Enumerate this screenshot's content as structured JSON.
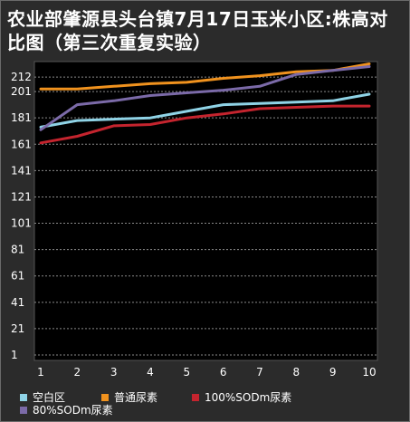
{
  "chart_data": {
    "type": "line",
    "title": "农业部肇源县头台镇7月17日玉米小区:株高对比图（第三次重复实验）",
    "x": [
      1,
      2,
      3,
      4,
      5,
      6,
      7,
      8,
      9,
      10
    ],
    "ylim": [
      1,
      221
    ],
    "yticks": [
      1,
      21,
      41,
      61,
      81,
      101,
      121,
      141,
      161,
      181,
      201,
      212
    ],
    "grid": true,
    "legend_position": "bottom",
    "series": [
      {
        "name": "空白区",
        "color": "#8fd3e6",
        "values": [
          174,
          179,
          180,
          181,
          186,
          191,
          192,
          193,
          194,
          199
        ]
      },
      {
        "name": "普通尿素",
        "color": "#f0921e",
        "values": [
          203,
          203,
          205,
          207,
          208,
          211,
          213,
          216,
          217,
          222
        ]
      },
      {
        "name": "100%SODm尿素",
        "color": "#c4242e",
        "values": [
          162,
          167,
          175,
          176,
          181,
          184,
          188,
          189,
          190,
          190
        ]
      },
      {
        "name": "80%SODm尿素",
        "color": "#7b6aa8",
        "values": [
          172,
          191,
          194,
          198,
          200,
          202,
          205,
          214,
          217,
          220
        ]
      }
    ]
  }
}
